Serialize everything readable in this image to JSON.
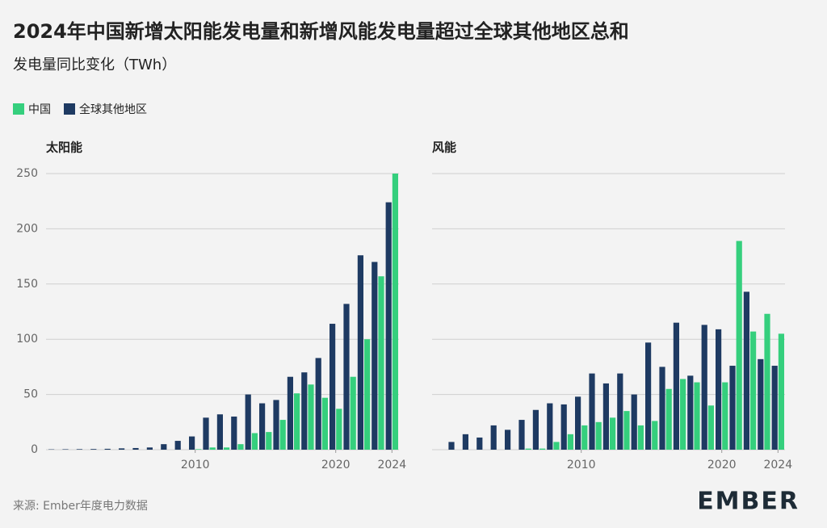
{
  "title": "2024年中国新增太阳能发电量和新增风能发电量超过全球其他地区总和",
  "subtitle": "发电量同比变化（TWh）",
  "source": "来源: Ember年度电力数据",
  "logo": "EMBER",
  "chart_data": [
    {
      "type": "bar",
      "title": "太阳能",
      "x": [
        2000,
        2001,
        2002,
        2003,
        2004,
        2005,
        2006,
        2007,
        2008,
        2009,
        2010,
        2011,
        2012,
        2013,
        2014,
        2015,
        2016,
        2017,
        2018,
        2019,
        2020,
        2021,
        2022,
        2023,
        2024
      ],
      "series": [
        {
          "name": "中国",
          "color": "#35cf7d",
          "values": [
            0,
            0,
            0,
            0,
            0,
            0,
            0,
            0,
            0,
            0,
            0.5,
            2,
            2,
            5,
            15,
            16,
            27,
            51,
            59,
            47,
            37,
            66,
            100,
            157,
            250
          ]
        },
        {
          "name": "全球其他地区",
          "color": "#1e3a62",
          "values": [
            0.3,
            0.4,
            0.5,
            0.6,
            0.8,
            1.2,
            1.5,
            2,
            5,
            8,
            12,
            29,
            32,
            30,
            50,
            42,
            45,
            66,
            70,
            83,
            114,
            132,
            176,
            170,
            224
          ]
        }
      ],
      "xlim": [
        1999.5,
        2024.5
      ],
      "xticks": [
        2010,
        2020,
        2024
      ],
      "ylim": [
        0,
        250
      ],
      "yticks": [
        0,
        50,
        100,
        150,
        200,
        250
      ],
      "grid": true
    },
    {
      "type": "bar",
      "title": "风能",
      "x": [
        2001,
        2002,
        2003,
        2004,
        2005,
        2006,
        2007,
        2008,
        2009,
        2010,
        2011,
        2012,
        2013,
        2014,
        2015,
        2016,
        2017,
        2018,
        2019,
        2020,
        2021,
        2022,
        2023,
        2024
      ],
      "series": [
        {
          "color": "#35cf7d",
          "values": [
            0,
            0,
            0,
            0,
            0,
            1,
            1,
            7,
            14,
            22,
            25,
            29,
            35,
            22,
            26,
            55,
            64,
            61,
            40,
            61,
            189,
            107,
            123,
            105
          ]
        },
        {
          "color": "#1e3a62",
          "values": [
            7,
            14,
            11,
            22,
            18,
            27,
            36,
            42,
            41,
            48,
            69,
            60,
            69,
            50,
            97,
            75,
            115,
            67,
            113,
            109,
            76,
            143,
            82,
            76
          ]
        }
      ],
      "xlim": [
        1999.5,
        2024.5
      ],
      "xticks": [
        2010,
        2020,
        2024
      ],
      "ylim": [
        0,
        250
      ],
      "yticks": [
        0,
        50,
        100,
        150,
        200,
        250
      ],
      "grid": true
    }
  ]
}
